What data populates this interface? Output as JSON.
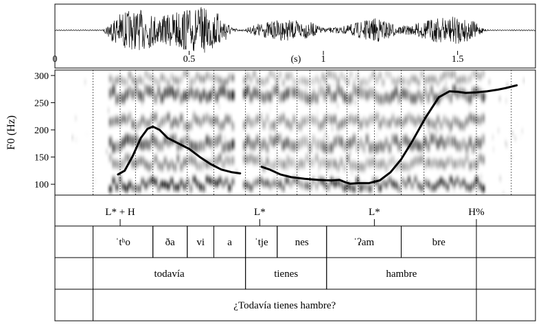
{
  "waveform": {
    "time_ticks": [
      {
        "t": 0,
        "label": "0"
      },
      {
        "t": 0.5,
        "label": "0.5"
      },
      {
        "t": 1,
        "label": "1"
      },
      {
        "t": 1.5,
        "label": "1.5"
      }
    ],
    "time_unit_label": "(s)"
  },
  "chart_data": {
    "type": "line",
    "title": "",
    "xlabel": "",
    "ylabel": "F0 (Hz)",
    "yticks": [
      100,
      150,
      200,
      250,
      300
    ],
    "ylim": [
      80,
      310
    ],
    "xlim": [
      0,
      1.79
    ],
    "background": "spectrogram",
    "series": [
      {
        "segments": [
          {
            "x": [
              0.235,
              0.26,
              0.29,
              0.32,
              0.345,
              0.365,
              0.39,
              0.42,
              0.46,
              0.5,
              0.54,
              0.58,
              0.62,
              0.66,
              0.69
            ],
            "y": [
              118,
              125,
              152,
              185,
              202,
              206,
              200,
              185,
              175,
              165,
              150,
              137,
              127,
              122,
              120
            ]
          },
          {
            "x": [
              0.77,
              0.8,
              0.84,
              0.88,
              0.93,
              0.98,
              1.03,
              1.06,
              1.08,
              1.1,
              1.13,
              1.17,
              1.21,
              1.25,
              1.29,
              1.33,
              1.38,
              1.43,
              1.47,
              1.5,
              1.53,
              1.57,
              1.61,
              1.65,
              1.68,
              1.72
            ],
            "y": [
              132,
              127,
              118,
              113,
              110,
              108,
              107,
              108,
              104,
              101,
              102,
              102,
              107,
              122,
              146,
              178,
              222,
              260,
              271,
              270,
              268,
              269,
              271,
              274,
              277,
              282
            ]
          }
        ]
      }
    ],
    "boundaries_s": [
      0.142,
      0.243,
      0.3,
      0.365,
      0.493,
      0.592,
      0.71,
      0.763,
      0.828,
      0.902,
      0.95,
      1.012,
      1.088,
      1.13,
      1.19,
      1.29,
      1.375,
      1.57,
      1.7
    ]
  },
  "tiers": {
    "tones": [
      {
        "t": 0.243,
        "label": "L* + H"
      },
      {
        "t": 0.763,
        "label": "L*"
      },
      {
        "t": 1.19,
        "label": "L*"
      },
      {
        "t": 1.57,
        "label": "H%"
      }
    ],
    "syllables": [
      {
        "start": 0.142,
        "end": 0.365,
        "label": "ˈtʰo"
      },
      {
        "start": 0.365,
        "end": 0.493,
        "label": "ða"
      },
      {
        "start": 0.493,
        "end": 0.592,
        "label": "vi"
      },
      {
        "start": 0.592,
        "end": 0.71,
        "label": "a"
      },
      {
        "start": 0.71,
        "end": 0.828,
        "label": "ˈtje"
      },
      {
        "start": 0.828,
        "end": 1.012,
        "label": "nes"
      },
      {
        "start": 1.012,
        "end": 1.29,
        "label": "ˈʔam"
      },
      {
        "start": 1.29,
        "end": 1.57,
        "label": "bre"
      }
    ],
    "words": [
      {
        "start": 0.142,
        "end": 0.71,
        "label": "todavía"
      },
      {
        "start": 0.71,
        "end": 1.012,
        "label": "tienes"
      },
      {
        "start": 1.012,
        "end": 1.57,
        "label": "hambre"
      }
    ],
    "sentence": [
      {
        "start": 0.142,
        "end": 1.57,
        "label": "¿Todavía tienes hambre?"
      }
    ]
  }
}
